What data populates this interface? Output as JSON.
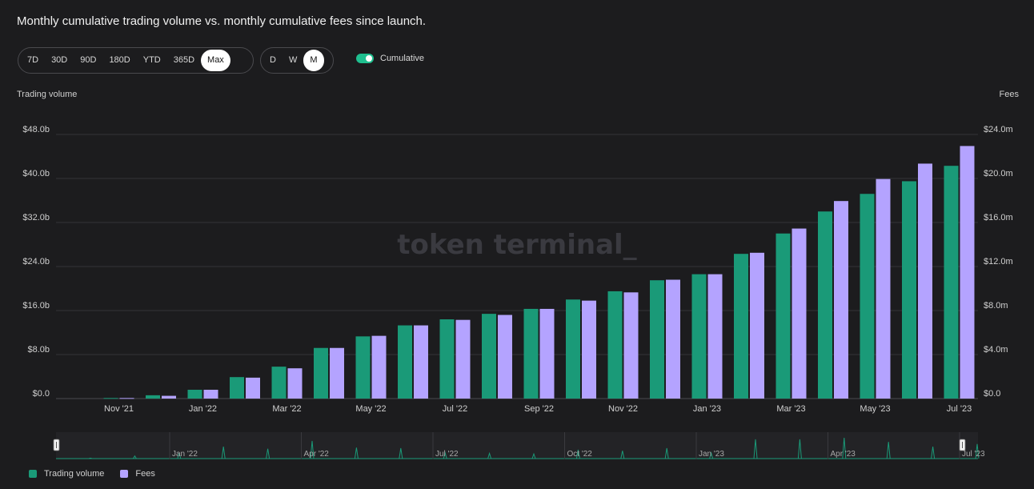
{
  "header": {
    "title": "Monthly cumulative trading volume vs. monthly cumulative fees since launch."
  },
  "range_options": [
    "7D",
    "30D",
    "90D",
    "180D",
    "YTD",
    "365D",
    "Max"
  ],
  "range_active": "Max",
  "granularity_options": [
    "D",
    "W",
    "M"
  ],
  "granularity_active": "M",
  "cumulative_toggle": {
    "label": "Cumulative",
    "on": true
  },
  "watermark": "token terminal_",
  "colors": {
    "volume": "#1a9a78",
    "fees": "#b4a3ff",
    "accent": "#1fbf8f"
  },
  "chart_data": {
    "type": "bar",
    "y_left_label": "Trading volume",
    "y_right_label": "Fees",
    "y_left_ticks": [
      "$0.0",
      "$8.0b",
      "$16.0b",
      "$24.0b",
      "$32.0b",
      "$40.0b",
      "$48.0b"
    ],
    "y_right_ticks": [
      "$0.0",
      "$4.0m",
      "$8.0m",
      "$12.0m",
      "$16.0m",
      "$20.0m",
      "$24.0m"
    ],
    "ylim_left": [
      0,
      48
    ],
    "ylim_right": [
      0,
      24
    ],
    "x_tick_labels": [
      "Nov '21",
      "Jan '22",
      "Mar '22",
      "May '22",
      "Jul '22",
      "Sep '22",
      "Nov '22",
      "Jan '23",
      "Mar '23",
      "May '23",
      "Jul '23"
    ],
    "categories": [
      "Nov '21",
      "Dec '21",
      "Jan '22",
      "Feb '22",
      "Mar '22",
      "Apr '22",
      "May '22",
      "Jun '22",
      "Jul '22",
      "Aug '22",
      "Sep '22",
      "Oct '22",
      "Nov '22",
      "Dec '22",
      "Jan '23",
      "Feb '23",
      "Mar '23",
      "Apr '23",
      "May '23",
      "Jun '23",
      "Jul '23"
    ],
    "series": [
      {
        "name": "Trading volume",
        "unit": "$b",
        "axis": "left",
        "values": [
          0.1,
          0.6,
          1.6,
          3.9,
          5.8,
          9.2,
          11.3,
          13.3,
          14.4,
          15.4,
          16.3,
          18.0,
          19.5,
          21.5,
          22.6,
          26.3,
          30.0,
          34.0,
          37.2,
          39.5,
          42.3
        ]
      },
      {
        "name": "Fees",
        "unit": "$m",
        "axis": "right",
        "values": [
          0.05,
          0.25,
          0.8,
          1.9,
          2.75,
          4.6,
          5.7,
          6.65,
          7.15,
          7.6,
          8.15,
          8.9,
          9.65,
          10.8,
          11.3,
          13.25,
          15.45,
          17.95,
          19.95,
          21.35,
          22.95
        ]
      }
    ]
  },
  "navigator": {
    "labels": [
      "Jan '22",
      "Apr '22",
      "Jul '22",
      "Oct '22",
      "Jan '23",
      "Apr '23",
      "Jul '23"
    ]
  },
  "legend": [
    {
      "label": "Trading volume",
      "color": "#1a9a78"
    },
    {
      "label": "Fees",
      "color": "#b4a3ff"
    }
  ]
}
